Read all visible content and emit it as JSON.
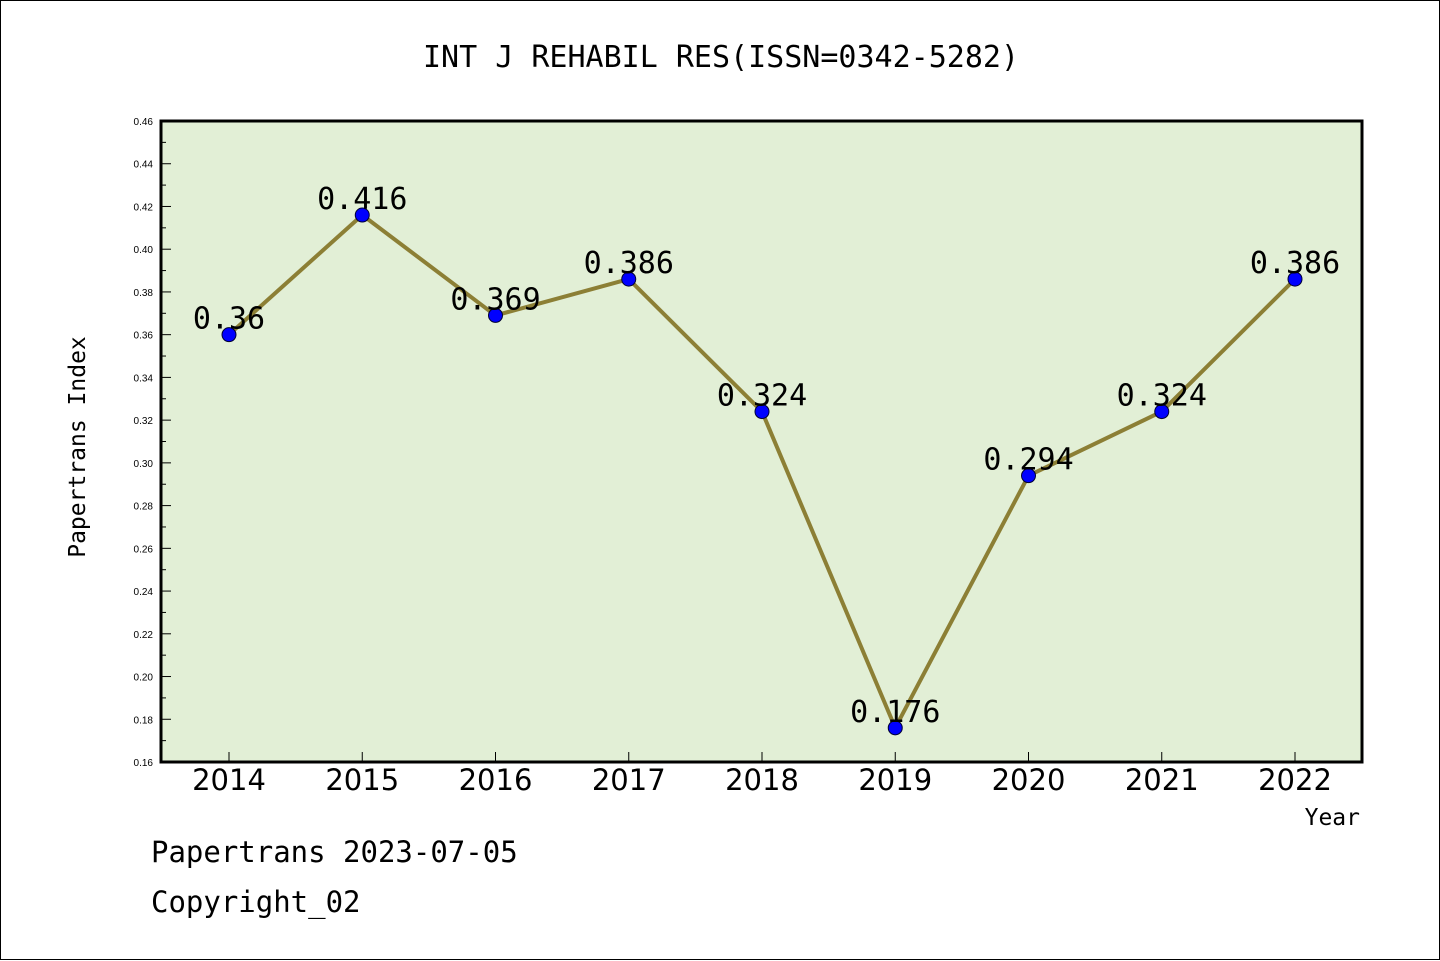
{
  "chart_data": {
    "type": "line",
    "title": "INT J REHABIL RES(ISSN=0342-5282)",
    "xlabel": "Year",
    "ylabel": "Papertrans Index",
    "categories": [
      "2014",
      "2015",
      "2016",
      "2017",
      "2018",
      "2019",
      "2020",
      "2021",
      "2022"
    ],
    "values": [
      0.36,
      0.416,
      0.369,
      0.386,
      0.324,
      0.176,
      0.294,
      0.324,
      0.386
    ],
    "data_labels": [
      "0.36",
      "0.416",
      "0.369",
      "0.386",
      "0.324",
      "0.176",
      "0.294",
      "0.324",
      "0.386"
    ],
    "ylim": [
      0.16,
      0.46
    ],
    "yticks": [
      "0.16",
      "0.18",
      "0.20",
      "0.22",
      "0.24",
      "0.26",
      "0.28",
      "0.30",
      "0.32",
      "0.34",
      "0.36",
      "0.38",
      "0.40",
      "0.42",
      "0.44",
      "0.46"
    ],
    "grid": false,
    "colors": {
      "plot_background": "#e2efd6",
      "line": "#8c7f35",
      "marker": "#0000ff"
    }
  },
  "footer": {
    "line1": "Papertrans 2023-07-05",
    "line2": "Copyright_02"
  }
}
